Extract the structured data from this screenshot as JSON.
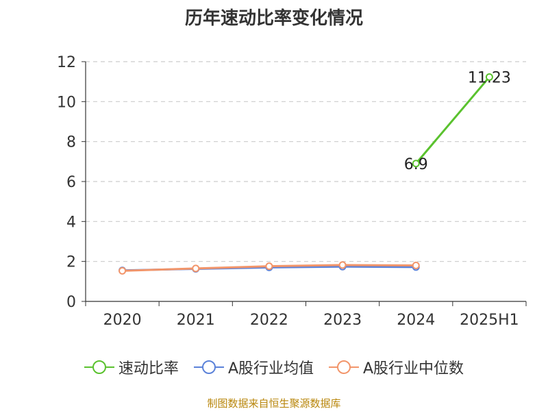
{
  "chart_data": {
    "type": "line",
    "title": "历年速动比率变化情况",
    "categories": [
      "2020",
      "2021",
      "2022",
      "2023",
      "2024",
      "2025H1"
    ],
    "ylim": [
      0,
      12
    ],
    "yticks": [
      0,
      2,
      4,
      6,
      8,
      10,
      12
    ],
    "grid": "horizontal-dashed",
    "legend_position": "bottom",
    "series": [
      {
        "name": "速动比率",
        "color": "#5ac22e",
        "values": [
          null,
          null,
          null,
          null,
          6.9,
          11.23
        ],
        "labels": [
          "",
          "",
          "",
          "",
          "6.9",
          "11.23"
        ]
      },
      {
        "name": "A股行业均值",
        "color": "#5b82d9",
        "values": [
          1.55,
          1.63,
          1.7,
          1.74,
          1.72,
          null
        ],
        "labels": [
          "",
          "",
          "",
          "",
          "",
          ""
        ]
      },
      {
        "name": "A股行业中位数",
        "color": "#f2956a",
        "values": [
          1.53,
          1.65,
          1.76,
          1.82,
          1.8,
          null
        ],
        "labels": [
          "",
          "",
          "",
          "",
          "",
          ""
        ]
      }
    ]
  },
  "source": "制图数据来自恒生聚源数据库"
}
